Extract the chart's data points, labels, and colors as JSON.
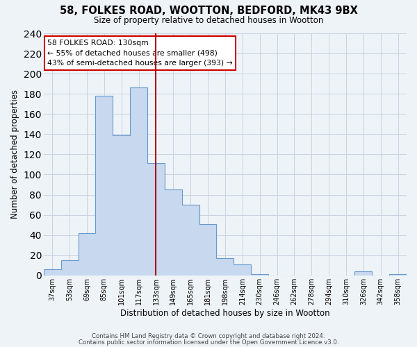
{
  "title1": "58, FOLKES ROAD, WOOTTON, BEDFORD, MK43 9BX",
  "title2": "Size of property relative to detached houses in Wootton",
  "xlabel": "Distribution of detached houses by size in Wootton",
  "ylabel": "Number of detached properties",
  "bar_labels": [
    "37sqm",
    "53sqm",
    "69sqm",
    "85sqm",
    "101sqm",
    "117sqm",
    "133sqm",
    "149sqm",
    "165sqm",
    "181sqm",
    "198sqm",
    "214sqm",
    "230sqm",
    "246sqm",
    "262sqm",
    "278sqm",
    "294sqm",
    "310sqm",
    "326sqm",
    "342sqm",
    "358sqm"
  ],
  "bar_values": [
    6,
    15,
    42,
    178,
    139,
    186,
    111,
    85,
    70,
    51,
    17,
    11,
    1,
    0,
    0,
    0,
    0,
    0,
    4,
    0,
    1
  ],
  "bar_color": "#c8d8ee",
  "bar_edge_color": "#6699cc",
  "grid_color": "#c8d4e0",
  "background_color": "#eef3f8",
  "vline_x_idx": 6,
  "vline_color": "#aa0000",
  "annotation_title": "58 FOLKES ROAD: 130sqm",
  "annotation_line1": "← 55% of detached houses are smaller (498)",
  "annotation_line2": "43% of semi-detached houses are larger (393) →",
  "annotation_box_color": "#ffffff",
  "annotation_border_color": "#cc0000",
  "ylim": [
    0,
    240
  ],
  "yticks": [
    0,
    20,
    40,
    60,
    80,
    100,
    120,
    140,
    160,
    180,
    200,
    220,
    240
  ],
  "footer1": "Contains HM Land Registry data © Crown copyright and database right 2024.",
  "footer2": "Contains public sector information licensed under the Open Government Licence v3.0."
}
